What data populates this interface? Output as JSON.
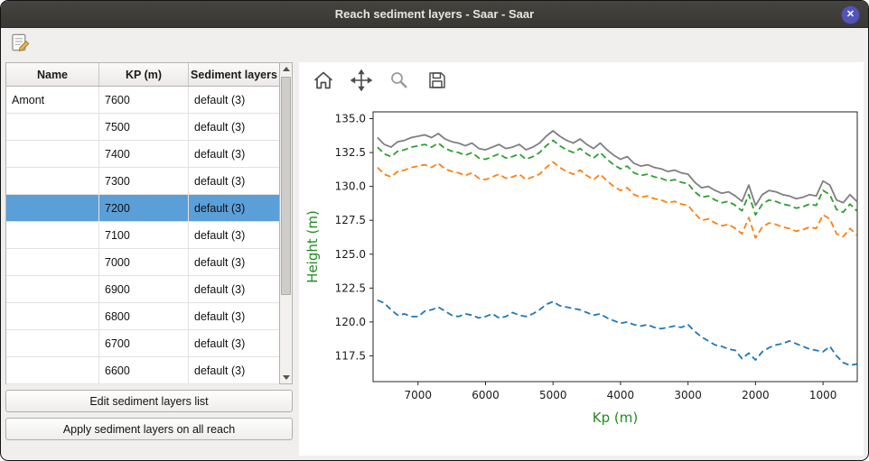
{
  "window": {
    "title": "Reach sediment layers - Saar - Saar",
    "close_glyph": "✕"
  },
  "icons": {
    "titlebar_close": "close-icon",
    "main_toolbar_edit": "edit-note-icon",
    "chart_home": "home-icon",
    "chart_pan": "pan-arrows-icon",
    "chart_zoom": "zoom-magnifier-icon",
    "chart_save": "save-floppy-icon"
  },
  "left_panel": {
    "table": {
      "columns": [
        "Name",
        "KP (m)",
        "Sediment layers"
      ],
      "selected_row_index": 4,
      "rows": [
        {
          "name": "Amont",
          "kp": "7600",
          "layers": "default (3)"
        },
        {
          "name": "",
          "kp": "7500",
          "layers": "default (3)"
        },
        {
          "name": "",
          "kp": "7400",
          "layers": "default (3)"
        },
        {
          "name": "",
          "kp": "7300",
          "layers": "default (3)"
        },
        {
          "name": "",
          "kp": "7200",
          "layers": "default (3)"
        },
        {
          "name": "",
          "kp": "7100",
          "layers": "default (3)"
        },
        {
          "name": "",
          "kp": "7000",
          "layers": "default (3)"
        },
        {
          "name": "",
          "kp": "6900",
          "layers": "default (3)"
        },
        {
          "name": "",
          "kp": "6800",
          "layers": "default (3)"
        },
        {
          "name": "",
          "kp": "6700",
          "layers": "default (3)"
        },
        {
          "name": "",
          "kp": "6600",
          "layers": "default (3)"
        }
      ]
    },
    "buttons": [
      {
        "label": "Edit sediment layers list"
      },
      {
        "label": "Apply sediment layers on all reach"
      }
    ]
  },
  "chart_data": {
    "type": "line",
    "title": "",
    "xlabel": "Kp (m)",
    "ylabel": "Height (m)",
    "label_color": "#228b22",
    "grid": false,
    "legend": null,
    "x_inverted": true,
    "xlim": [
      7666,
      493
    ],
    "ylim": [
      115.6,
      135.5
    ],
    "xticks": [
      7000,
      6000,
      5000,
      4000,
      3000,
      2000,
      1000
    ],
    "yticks": [
      135.0,
      132.5,
      130.0,
      127.5,
      125.0,
      122.5,
      120.0,
      117.5
    ],
    "x": [
      7600,
      7500,
      7400,
      7300,
      7200,
      7100,
      7000,
      6900,
      6800,
      6700,
      6600,
      6500,
      6400,
      6300,
      6200,
      6100,
      6000,
      5900,
      5800,
      5700,
      5600,
      5500,
      5400,
      5300,
      5200,
      5100,
      5000,
      4900,
      4800,
      4700,
      4600,
      4500,
      4400,
      4300,
      4200,
      4100,
      4000,
      3900,
      3800,
      3700,
      3600,
      3500,
      3400,
      3300,
      3200,
      3100,
      3000,
      2900,
      2800,
      2700,
      2600,
      2500,
      2400,
      2300,
      2200,
      2100,
      2000,
      1900,
      1800,
      1700,
      1600,
      1500,
      1400,
      1300,
      1200,
      1100,
      1000,
      900,
      800,
      700,
      600,
      500
    ],
    "series": [
      {
        "name": "blue",
        "color": "#1f77b4",
        "dashed": true,
        "values": [
          121.6,
          121.4,
          120.9,
          120.5,
          120.6,
          120.4,
          120.4,
          120.8,
          120.9,
          121.1,
          120.8,
          120.5,
          120.4,
          120.6,
          120.5,
          120.3,
          120.4,
          120.6,
          120.3,
          120.4,
          120.7,
          120.5,
          120.4,
          120.6,
          120.9,
          121.3,
          121.5,
          121.2,
          121.1,
          121.0,
          120.9,
          120.7,
          120.5,
          120.6,
          120.3,
          120.1,
          119.9,
          120.0,
          119.8,
          119.7,
          119.8,
          119.6,
          119.5,
          119.6,
          119.7,
          119.6,
          119.8,
          119.3,
          118.9,
          118.6,
          118.3,
          118.2,
          118.0,
          117.9,
          117.3,
          117.7,
          117.2,
          117.8,
          118.1,
          118.3,
          118.4,
          118.6,
          118.4,
          118.2,
          118.0,
          117.9,
          117.8,
          118.2,
          117.5,
          117.0,
          116.8,
          116.9
        ]
      },
      {
        "name": "orange",
        "color": "#ff7f0e",
        "dashed": true,
        "values": [
          131.4,
          130.9,
          130.7,
          131.1,
          131.2,
          131.4,
          131.5,
          131.6,
          131.4,
          131.7,
          131.3,
          131.1,
          131.0,
          130.8,
          131.0,
          130.6,
          130.5,
          130.7,
          130.9,
          130.6,
          130.7,
          130.9,
          130.5,
          130.7,
          130.9,
          131.4,
          131.8,
          131.4,
          131.1,
          130.9,
          131.2,
          130.8,
          130.5,
          130.9,
          130.4,
          130.0,
          129.7,
          129.9,
          129.4,
          129.2,
          129.3,
          129.1,
          129.0,
          128.8,
          128.9,
          128.7,
          128.6,
          128.0,
          127.5,
          127.6,
          127.3,
          127.1,
          127.2,
          126.9,
          126.5,
          127.7,
          126.2,
          127.0,
          127.3,
          127.2,
          127.0,
          126.9,
          126.7,
          126.8,
          127.0,
          126.9,
          127.9,
          127.6,
          126.5,
          126.3,
          126.9,
          126.4
        ]
      },
      {
        "name": "green",
        "color": "#2ca02c",
        "dashed": true,
        "values": [
          132.9,
          132.4,
          132.2,
          132.6,
          132.7,
          132.9,
          133.0,
          133.1,
          132.9,
          133.2,
          132.8,
          132.6,
          132.5,
          132.3,
          132.5,
          132.1,
          132.0,
          132.2,
          132.4,
          132.1,
          132.2,
          132.4,
          132.0,
          132.2,
          132.5,
          133.0,
          133.4,
          133.0,
          132.7,
          132.5,
          132.8,
          132.4,
          132.1,
          132.5,
          132.0,
          131.6,
          131.3,
          131.5,
          131.0,
          130.8,
          130.9,
          130.7,
          130.6,
          130.4,
          130.5,
          130.3,
          130.2,
          129.6,
          129.2,
          129.3,
          129.0,
          128.8,
          128.9,
          128.6,
          128.2,
          129.4,
          127.9,
          128.7,
          129.0,
          128.9,
          128.7,
          128.6,
          128.4,
          128.5,
          128.7,
          128.6,
          129.7,
          129.4,
          128.3,
          128.1,
          128.7,
          128.2
        ]
      },
      {
        "name": "gray",
        "color": "#7f7f7f",
        "dashed": false,
        "values": [
          133.6,
          133.1,
          132.9,
          133.3,
          133.4,
          133.6,
          133.7,
          133.8,
          133.6,
          133.9,
          133.5,
          133.3,
          133.2,
          133.0,
          133.2,
          132.8,
          132.7,
          132.9,
          133.1,
          132.8,
          132.9,
          133.1,
          132.7,
          132.9,
          133.2,
          133.7,
          134.1,
          133.7,
          133.4,
          133.2,
          133.5,
          133.1,
          132.8,
          133.2,
          132.7,
          132.3,
          132.0,
          132.2,
          131.7,
          131.5,
          131.6,
          131.4,
          131.3,
          131.1,
          131.2,
          131.0,
          130.9,
          130.3,
          129.9,
          130.0,
          129.7,
          129.5,
          129.6,
          129.3,
          128.9,
          130.1,
          128.6,
          129.4,
          129.7,
          129.6,
          129.4,
          129.3,
          129.1,
          129.2,
          129.4,
          129.3,
          130.4,
          130.1,
          129.0,
          128.8,
          129.4,
          128.9
        ]
      }
    ]
  }
}
